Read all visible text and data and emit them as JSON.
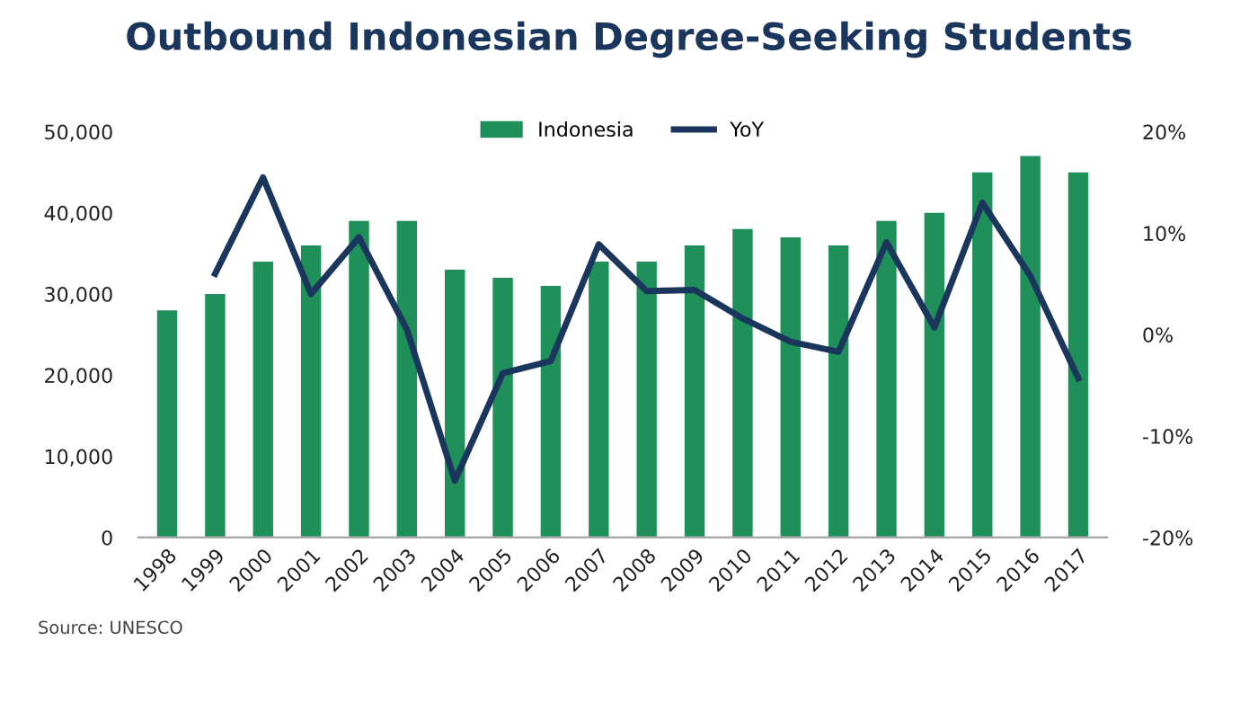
{
  "chart_data": {
    "type": "bar",
    "title": "Outbound Indonesian Degree-Seeking Students",
    "categories": [
      "1998",
      "1999",
      "2000",
      "2001",
      "2002",
      "2003",
      "2004",
      "2005",
      "2006",
      "2007",
      "2008",
      "2009",
      "2010",
      "2011",
      "2012",
      "2013",
      "2014",
      "2015",
      "2016",
      "2017"
    ],
    "series": [
      {
        "name": "Indonesia",
        "color": "#20905a",
        "values": [
          28000,
          30000,
          34000,
          36000,
          39000,
          39000,
          33000,
          32000,
          31000,
          34000,
          34000,
          36000,
          38000,
          37000,
          36000,
          39000,
          40000,
          45000,
          47000,
          45000
        ]
      },
      {
        "name": "YoY",
        "type": "line",
        "axis": "y2",
        "color": "#1b365d",
        "values": [
          null,
          6.0,
          15.5,
          4.0,
          9.6,
          0.5,
          -14.4,
          -3.8,
          -2.6,
          8.9,
          4.3,
          4.4,
          1.6,
          -0.7,
          -1.7,
          9.1,
          0.7,
          13.0,
          5.8,
          -4.3
        ]
      }
    ],
    "ylim": [
      0,
      50000
    ],
    "yticks": [
      {
        "value": 0,
        "label": "0"
      },
      {
        "value": 10000,
        "label": "10,000"
      },
      {
        "value": 20000,
        "label": "20,000"
      },
      {
        "value": 30000,
        "label": "30,000"
      },
      {
        "value": 40000,
        "label": "40,000"
      },
      {
        "value": 50000,
        "label": "50,000"
      }
    ],
    "y2lim": [
      -20,
      20
    ],
    "y2ticks": [
      {
        "value": -20,
        "label": "-20%"
      },
      {
        "value": -10,
        "label": "-10%"
      },
      {
        "value": 0,
        "label": "0%"
      },
      {
        "value": 10,
        "label": "10%"
      },
      {
        "value": 20,
        "label": "20%"
      }
    ],
    "legend": "top",
    "grid": false,
    "annotations": [
      "Source: UNESCO"
    ]
  }
}
